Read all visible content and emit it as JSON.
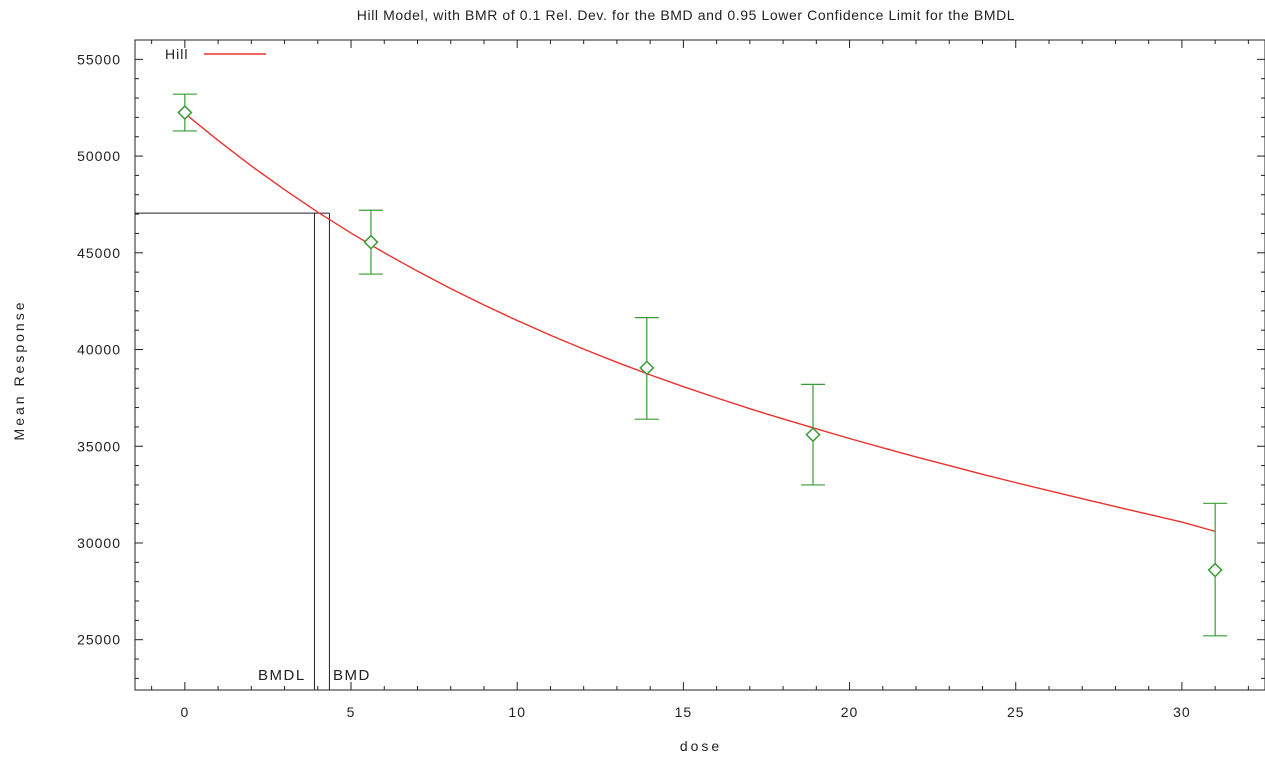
{
  "chart_data": {
    "type": "line",
    "title": "Hill Model, with BMR of 0.1 Rel. Dev. for the BMD and 0.95 Lower Confidence Limit for the BMDL",
    "xlabel": "dose",
    "ylabel": "Mean Response",
    "xlim": [
      -1.5,
      32.5
    ],
    "ylim": [
      22400,
      56000
    ],
    "x_ticks": [
      0,
      5,
      10,
      15,
      20,
      25,
      30
    ],
    "y_ticks": [
      25000,
      30000,
      35000,
      40000,
      45000,
      50000,
      55000
    ],
    "x_minor_step": 1,
    "y_minor_step": 1000,
    "grid": false,
    "legend": {
      "placement": "top-left",
      "entries": [
        {
          "label": "Hill",
          "color": "#e8322d"
        }
      ]
    },
    "series": [
      {
        "name": "Hill",
        "kind": "fitted-curve",
        "color": "#e8322d",
        "x": [
          0,
          1,
          2,
          3,
          4,
          5,
          6,
          7,
          8,
          9,
          10,
          11,
          12,
          13,
          14,
          15,
          16,
          17,
          18,
          19,
          20,
          21,
          22,
          23,
          24,
          25,
          26,
          27,
          28,
          29,
          30,
          31
        ],
        "y": [
          52200,
          50810,
          49490,
          48260,
          47100,
          46020,
          45000,
          44050,
          43150,
          42300,
          41500,
          40740,
          40020,
          39340,
          38690,
          38080,
          37500,
          36940,
          36410,
          35900,
          35400,
          34920,
          34450,
          34000,
          33550,
          33120,
          32700,
          32290,
          31880,
          31480,
          31080,
          30600
        ]
      },
      {
        "kind": "observed-means",
        "color": "#3a9a35",
        "points": [
          {
            "x": 0,
            "mean": 52250,
            "lower": 51300,
            "upper": 53200
          },
          {
            "x": 5.6,
            "mean": 45550,
            "lower": 43900,
            "upper": 47200
          },
          {
            "x": 13.9,
            "mean": 39050,
            "lower": 36400,
            "upper": 41650
          },
          {
            "x": 18.9,
            "mean": 35600,
            "lower": 33000,
            "upper": 38200
          },
          {
            "x": 31,
            "mean": 28600,
            "lower": 25200,
            "upper": 32050
          }
        ]
      }
    ],
    "bmr_response": 47050,
    "bmdl": {
      "label": "BMDL",
      "x": 3.9
    },
    "bmd": {
      "label": "BMD",
      "x": 4.35
    }
  }
}
